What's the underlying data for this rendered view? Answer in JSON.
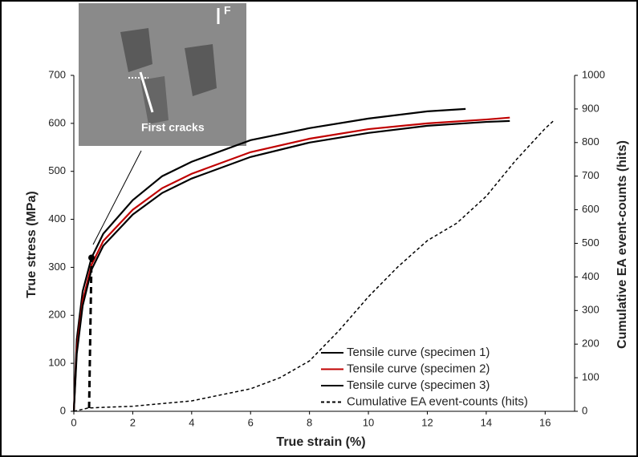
{
  "chart_data": {
    "type": "line",
    "xlabel": "True strain (%)",
    "ylabel": "True stress (MPa)",
    "y2label": "Cumulative EA event-counts (hits)",
    "xlim": [
      0,
      17
    ],
    "xticks": [
      0,
      2,
      4,
      6,
      8,
      10,
      12,
      14,
      16
    ],
    "ylim": [
      0,
      700
    ],
    "yticks": [
      0,
      100,
      200,
      300,
      400,
      500,
      600,
      700
    ],
    "y2lim": [
      0,
      1000
    ],
    "y2ticks": [
      0,
      100,
      200,
      300,
      400,
      500,
      600,
      700,
      800,
      900,
      1000
    ],
    "legend": "lower right",
    "annotations": [
      "First cracks",
      "F"
    ],
    "crack_point": {
      "x": 0.6,
      "y": 320
    },
    "series": [
      {
        "name": "Tensile curve (specimen 1)",
        "color": "#000000",
        "dash": false,
        "x": [
          0,
          0.1,
          0.3,
          0.6,
          1,
          2,
          3,
          4,
          6,
          8,
          10,
          12,
          13.3
        ],
        "values": [
          0,
          150,
          250,
          320,
          370,
          440,
          490,
          520,
          565,
          590,
          610,
          625,
          630
        ]
      },
      {
        "name": "Tensile curve (specimen 2)",
        "color": "#c00000",
        "dash": false,
        "x": [
          0,
          0.1,
          0.3,
          0.6,
          1,
          2,
          3,
          4,
          6,
          8,
          10,
          12,
          14,
          14.8
        ],
        "values": [
          0,
          130,
          230,
          305,
          355,
          420,
          465,
          495,
          540,
          568,
          588,
          600,
          608,
          612
        ]
      },
      {
        "name": "Tensile curve (specimen 3)",
        "color": "#000000",
        "dash": false,
        "x": [
          0,
          0.1,
          0.3,
          0.6,
          1,
          2,
          3,
          4,
          6,
          8,
          10,
          12,
          14,
          14.8
        ],
        "values": [
          0,
          120,
          220,
          295,
          345,
          410,
          455,
          485,
          530,
          560,
          580,
          595,
          603,
          605
        ]
      },
      {
        "name": "Cumulative EA event-counts (hits)",
        "color": "#000000",
        "dash": true,
        "axis": "y2",
        "x": [
          0,
          0.5,
          2,
          4,
          6,
          7,
          8,
          9,
          10,
          11,
          12,
          13,
          14,
          15,
          16,
          16.3
        ],
        "values": [
          0,
          10,
          15,
          31,
          67,
          100,
          150,
          240,
          341,
          430,
          508,
          560,
          640,
          747,
          842,
          866
        ]
      }
    ]
  }
}
